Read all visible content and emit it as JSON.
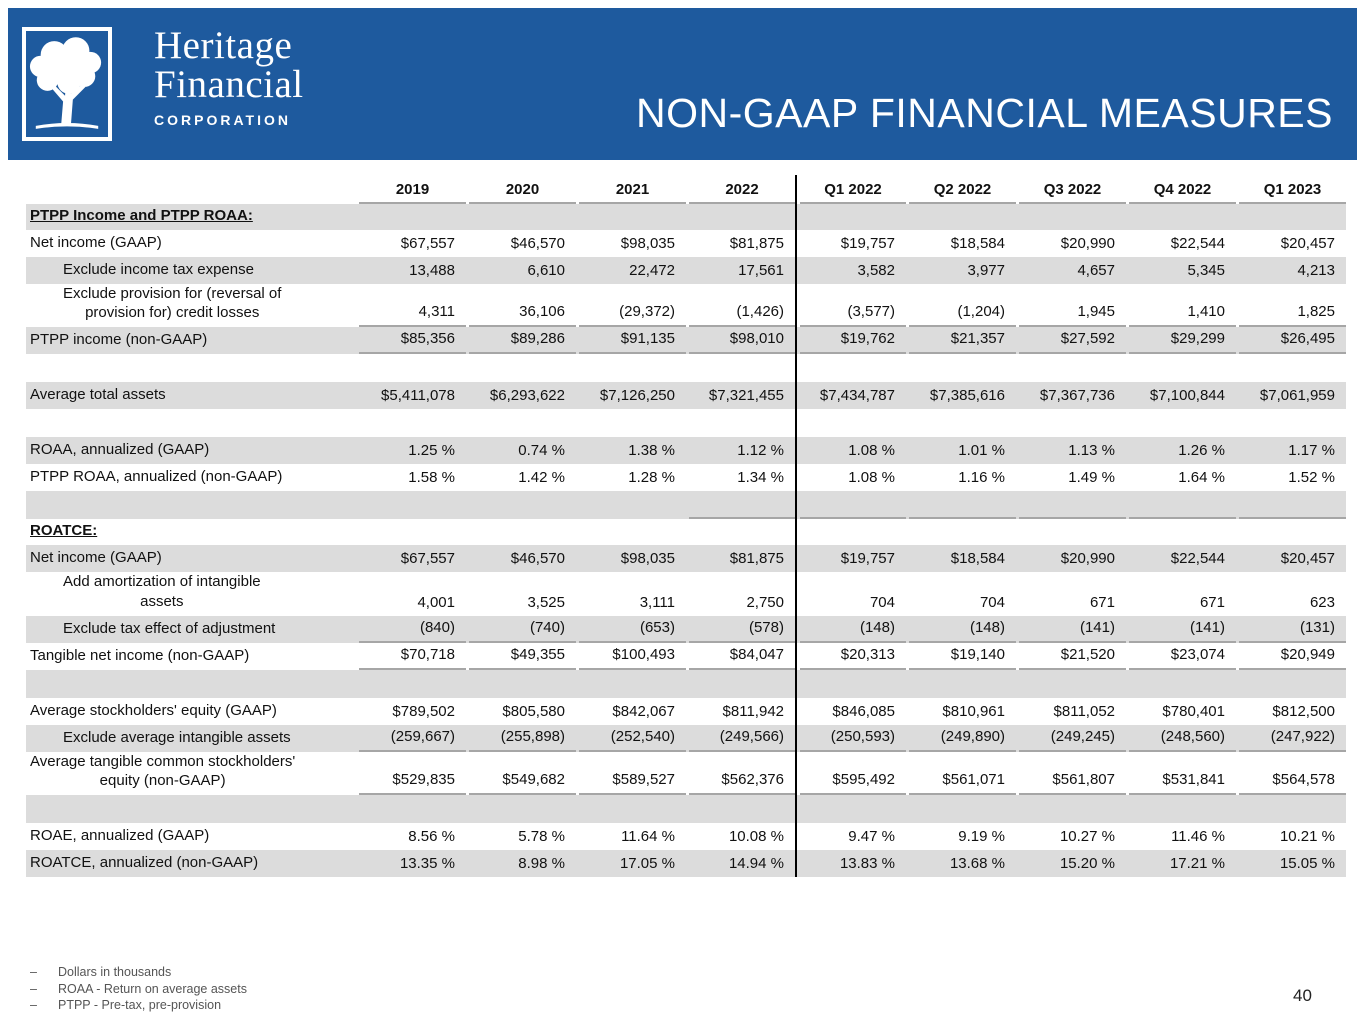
{
  "colors": {
    "banner_blue": "#1e5a9e",
    "row_shade": "#dcdcdc",
    "rule_gray": "#a6a6a6"
  },
  "header": {
    "title": "NON-GAAP FINANCIAL MEASURES",
    "brand": {
      "line1": "Heritage",
      "line2": "Financial",
      "line3": "CORPORATION"
    }
  },
  "table": {
    "columns": [
      "2019",
      "2020",
      "2021",
      "2022",
      "Q1 2022",
      "Q2 2022",
      "Q3 2022",
      "Q4 2022",
      "Q1 2023"
    ],
    "rows": [
      {
        "type": "section",
        "label": "PTPP Income and PTPP ROAA:",
        "shaded": true
      },
      {
        "type": "data",
        "label": "Net income (GAAP)",
        "indent": 0,
        "shaded": false,
        "values": [
          "$67,557",
          "$46,570",
          "$98,035",
          "$81,875",
          "$19,757",
          "$18,584",
          "$20,990",
          "$22,544",
          "$20,457"
        ]
      },
      {
        "type": "data",
        "label": "Exclude income tax expense",
        "indent": 1,
        "shaded": true,
        "values": [
          "13,488",
          "6,610",
          "22,472",
          "17,561",
          "3,582",
          "3,977",
          "4,657",
          "5,345",
          "4,213"
        ]
      },
      {
        "type": "data",
        "label": "Exclude provision for (reversal of\nprovision for) credit losses",
        "indent": 1,
        "shaded": false,
        "underline": true,
        "values": [
          "4,311",
          "36,106",
          "(29,372)",
          "(1,426)",
          "(3,577)",
          "(1,204)",
          "1,945",
          "1,410",
          "1,825"
        ]
      },
      {
        "type": "data",
        "label": "PTPP income (non-GAAP)",
        "indent": 0,
        "shaded": true,
        "underline": true,
        "values": [
          "$85,356",
          "$89,286",
          "$91,135",
          "$98,010",
          "$19,762",
          "$21,357",
          "$27,592",
          "$29,299",
          "$26,495"
        ]
      },
      {
        "type": "spacer",
        "shaded": false
      },
      {
        "type": "data",
        "label": "Average total assets",
        "indent": 0,
        "shaded": true,
        "values": [
          "$5,411,078",
          "$6,293,622",
          "$7,126,250",
          "$7,321,455",
          "$7,434,787",
          "$7,385,616",
          "$7,367,736",
          "$7,100,844",
          "$7,061,959"
        ]
      },
      {
        "type": "spacer",
        "shaded": false
      },
      {
        "type": "data",
        "label": "ROAA, annualized (GAAP)",
        "indent": 0,
        "shaded": true,
        "values": [
          "1.25 %",
          "0.74 %",
          "1.38 %",
          "1.12 %",
          "1.08 %",
          "1.01 %",
          "1.13 %",
          "1.26 %",
          "1.17 %"
        ]
      },
      {
        "type": "data",
        "label": "PTPP ROAA, annualized (non-GAAP)",
        "indent": 0,
        "shaded": false,
        "values": [
          "1.58 %",
          "1.42 %",
          "1.28 %",
          "1.34 %",
          "1.08 %",
          "1.16 %",
          "1.49 %",
          "1.64 %",
          "1.52 %"
        ]
      },
      {
        "type": "spacer",
        "shaded": true,
        "underline": true,
        "underline_from": 3
      },
      {
        "type": "section",
        "label": "ROATCE:",
        "shaded": false
      },
      {
        "type": "data",
        "label": "Net income (GAAP)",
        "indent": 0,
        "shaded": true,
        "values": [
          "$67,557",
          "$46,570",
          "$98,035",
          "$81,875",
          "$19,757",
          "$18,584",
          "$20,990",
          "$22,544",
          "$20,457"
        ]
      },
      {
        "type": "data",
        "label": "Add amortization of intangible\nassets",
        "indent": 1,
        "shaded": false,
        "values": [
          "4,001",
          "3,525",
          "3,111",
          "2,750",
          "704",
          "704",
          "671",
          "671",
          "623"
        ]
      },
      {
        "type": "data",
        "label": "Exclude tax effect of adjustment",
        "indent": 1,
        "shaded": true,
        "underline": true,
        "values": [
          "(840)",
          "(740)",
          "(653)",
          "(578)",
          "(148)",
          "(148)",
          "(141)",
          "(141)",
          "(131)"
        ]
      },
      {
        "type": "data",
        "label": "Tangible net income (non-GAAP)",
        "indent": 0,
        "shaded": false,
        "underline": true,
        "values": [
          "$70,718",
          "$49,355",
          "$100,493",
          "$84,047",
          "$20,313",
          "$19,140",
          "$21,520",
          "$23,074",
          "$20,949"
        ]
      },
      {
        "type": "spacer",
        "shaded": true
      },
      {
        "type": "data",
        "label": "Average stockholders' equity (GAAP)",
        "indent": 0,
        "shaded": false,
        "values": [
          "$789,502",
          "$805,580",
          "$842,067",
          "$811,942",
          "$846,085",
          "$810,961",
          "$811,052",
          "$780,401",
          "$812,500"
        ]
      },
      {
        "type": "data",
        "label": "Exclude average intangible assets",
        "indent": 1,
        "shaded": true,
        "underline": true,
        "values": [
          "(259,667)",
          "(255,898)",
          "(252,540)",
          "(249,566)",
          "(250,593)",
          "(249,890)",
          "(249,245)",
          "(248,560)",
          "(247,922)"
        ]
      },
      {
        "type": "data",
        "label": "Average tangible common stockholders'\nequity (non-GAAP)",
        "indent": 0,
        "shaded": false,
        "underline": true,
        "values": [
          "$529,835",
          "$549,682",
          "$589,527",
          "$562,376",
          "$595,492",
          "$561,071",
          "$561,807",
          "$531,841",
          "$564,578"
        ]
      },
      {
        "type": "spacer",
        "shaded": true
      },
      {
        "type": "data",
        "label": "ROAE, annualized (GAAP)",
        "indent": 0,
        "shaded": false,
        "values": [
          "8.56 %",
          "5.78 %",
          "11.64 %",
          "10.08 %",
          "9.47 %",
          "9.19 %",
          "10.27 %",
          "11.46 %",
          "10.21 %"
        ]
      },
      {
        "type": "data",
        "label": "ROATCE, annualized (non-GAAP)",
        "indent": 0,
        "shaded": true,
        "values": [
          "13.35 %",
          "8.98 %",
          "17.05 %",
          "14.94 %",
          "13.83 %",
          "13.68 %",
          "15.20 %",
          "17.21 %",
          "15.05 %"
        ]
      }
    ]
  },
  "footnotes": {
    "dash": "–",
    "items": [
      "Dollars in thousands",
      "ROAA - Return on average assets",
      "PTPP - Pre-tax, pre-provision"
    ]
  },
  "page_number": "40"
}
